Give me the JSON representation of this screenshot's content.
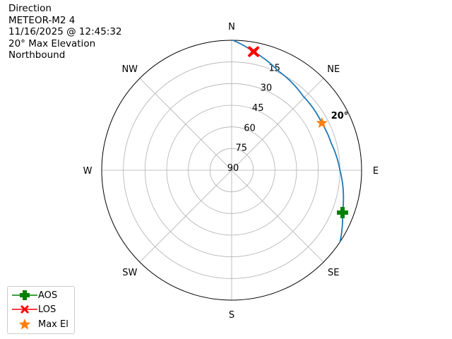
{
  "header": {
    "lines": [
      "Direction",
      "METEOR-M2 4",
      "11/16/2025 @ 12:45:32",
      "20° Max Elevation",
      "Northbound"
    ]
  },
  "chart_data": {
    "type": "polar",
    "theta_direction": "clockwise",
    "theta_zero": "N",
    "theta_labels": [
      "N",
      "NE",
      "E",
      "SE",
      "S",
      "SW",
      "W",
      "NW"
    ],
    "radial_axis": "elevation (90 at center, 0 at edge)",
    "radial_ticks": [
      15,
      30,
      45,
      60,
      75,
      90
    ],
    "grid": true,
    "track": {
      "color": "#1f77b4",
      "points_az_el": [
        [
          0.6,
          0
        ],
        [
          10.5,
          6.5
        ],
        [
          25,
          14
        ],
        [
          44,
          18.7
        ],
        [
          62,
          19.5
        ],
        [
          75,
          18.5
        ],
        [
          90,
          15
        ],
        [
          110.9,
          7.8
        ],
        [
          123.5,
          0
        ]
      ]
    },
    "markers": [
      {
        "name": "AOS",
        "az": 110.9,
        "el": 7.8,
        "color": "#008000",
        "shape": "plus"
      },
      {
        "name": "LOS",
        "az": 10.5,
        "el": 6.5,
        "color": "#ff0000",
        "shape": "x"
      },
      {
        "name": "Max El",
        "az": 62.4,
        "el": 19.5,
        "color": "#ff7f0e",
        "shape": "star"
      }
    ],
    "annotation": "20°",
    "legend_placement": "lower-left",
    "legend": [
      "AOS",
      "LOS",
      "Max El"
    ]
  }
}
